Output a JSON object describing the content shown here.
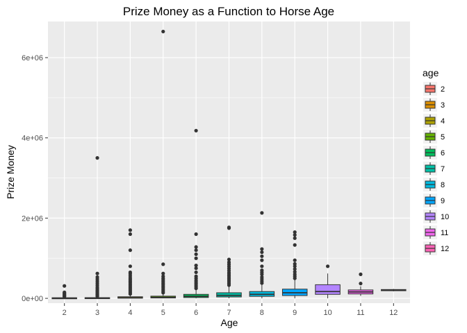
{
  "chart_data": {
    "type": "box",
    "title": "Prize Money as a Function to Horse Age",
    "xlabel": "Age",
    "ylabel": "Prize Money",
    "ylim": [
      -120000,
      6900000
    ],
    "y_ticks": [
      {
        "value": 0,
        "label": "0e+00"
      },
      {
        "value": 2000000,
        "label": "2e+06"
      },
      {
        "value": 4000000,
        "label": "4e+06"
      },
      {
        "value": 6000000,
        "label": "6e+06"
      }
    ],
    "grid": true,
    "legend": {
      "title": "age",
      "position": "right"
    },
    "categories": [
      "2",
      "3",
      "4",
      "5",
      "6",
      "7",
      "8",
      "9",
      "10",
      "11",
      "12"
    ],
    "series": [
      {
        "name": "2",
        "color": "#F8766D",
        "q1": 0,
        "median": 6000,
        "q3": 15000,
        "whisker_low": 0,
        "whisker_high": 30000,
        "outliers": [
          40000,
          55000,
          70000,
          90000,
          110000,
          130000,
          150000,
          310000
        ]
      },
      {
        "name": "3",
        "color": "#DB8E00",
        "q1": 0,
        "median": 5000,
        "q3": 18000,
        "whisker_low": 0,
        "whisker_high": 40000,
        "outliers": [
          50000,
          70000,
          90000,
          110000,
          140000,
          170000,
          200000,
          240000,
          280000,
          330000,
          380000,
          430000,
          480000,
          530000,
          620000,
          3500000
        ]
      },
      {
        "name": "4",
        "color": "#AEA200",
        "q1": 5000,
        "median": 15000,
        "q3": 40000,
        "whisker_low": 0,
        "whisker_high": 90000,
        "outliers": [
          110000,
          150000,
          190000,
          230000,
          270000,
          310000,
          350000,
          390000,
          430000,
          470000,
          510000,
          560000,
          610000,
          650000,
          800000,
          1200000,
          1600000,
          1700000
        ]
      },
      {
        "name": "5",
        "color": "#64B200",
        "q1": 10000,
        "median": 25000,
        "q3": 55000,
        "whisker_low": 0,
        "whisker_high": 120000,
        "outliers": [
          140000,
          180000,
          220000,
          260000,
          300000,
          340000,
          380000,
          420000,
          460000,
          500000,
          550000,
          620000,
          850000,
          6650000
        ]
      },
      {
        "name": "6",
        "color": "#00BD5C",
        "q1": 20000,
        "median": 50000,
        "q3": 100000,
        "whisker_low": 0,
        "whisker_high": 220000,
        "outliers": [
          250000,
          290000,
          330000,
          370000,
          410000,
          450000,
          500000,
          550000,
          650000,
          750000,
          820000,
          1000000,
          1100000,
          1200000,
          1280000,
          1600000,
          4180000
        ]
      },
      {
        "name": "7",
        "color": "#00C1A7",
        "q1": 35000,
        "median": 75000,
        "q3": 140000,
        "whisker_low": 0,
        "whisker_high": 300000,
        "outliers": [
          330000,
          370000,
          410000,
          450000,
          490000,
          530000,
          570000,
          610000,
          650000,
          700000,
          750000,
          800000,
          850000,
          900000,
          970000,
          1750000,
          1770000
        ]
      },
      {
        "name": "8",
        "color": "#00BADE",
        "q1": 50000,
        "median": 100000,
        "q3": 170000,
        "whisker_low": 0,
        "whisker_high": 350000,
        "outliers": [
          380000,
          430000,
          480000,
          530000,
          600000,
          650000,
          700000,
          800000,
          950000,
          1050000,
          1150000,
          1230000,
          2130000
        ]
      },
      {
        "name": "9",
        "color": "#00A6FF",
        "q1": 70000,
        "median": 140000,
        "q3": 230000,
        "whisker_low": 0,
        "whisker_high": 460000,
        "outliers": [
          500000,
          550000,
          600000,
          660000,
          730000,
          800000,
          860000,
          950000,
          1330000,
          1500000,
          1580000,
          1650000
        ]
      },
      {
        "name": "10",
        "color": "#B385FF",
        "q1": 100000,
        "median": 170000,
        "q3": 340000,
        "whisker_low": 0,
        "whisker_high": 620000,
        "outliers": [
          800000
        ]
      },
      {
        "name": "11",
        "color": "#EF67EB",
        "q1": 110000,
        "median": 160000,
        "q3": 210000,
        "whisker_low": 60000,
        "whisker_high": 300000,
        "outliers": [
          370000,
          600000
        ]
      },
      {
        "name": "12",
        "color": "#FF63B6",
        "q1": 190000,
        "median": 205000,
        "q3": 220000,
        "whisker_low": 175000,
        "whisker_high": 235000,
        "outliers": []
      }
    ]
  }
}
